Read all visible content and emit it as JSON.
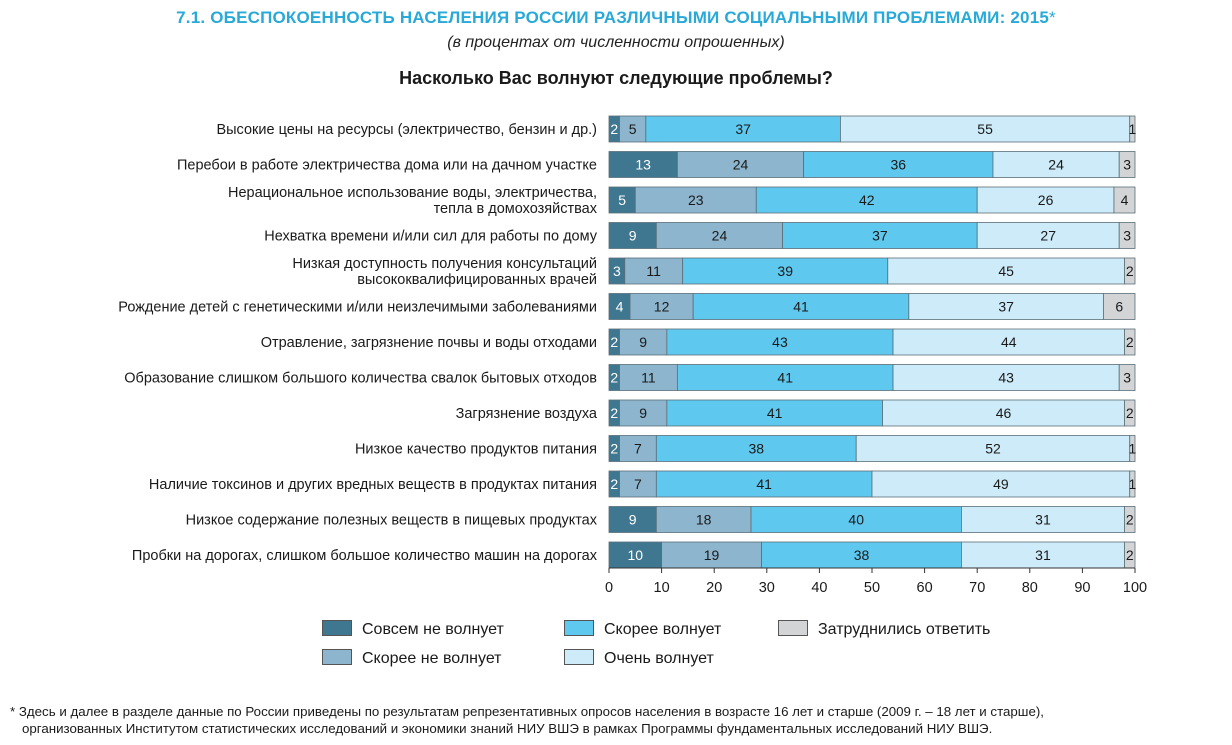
{
  "header": {
    "title": "7.1. ОБЕСПОКОЕННОСТЬ НАСЕЛЕНИЯ РОССИИ РАЗЛИЧНЫМИ СОЦИАЛЬНЫМИ ПРОБЛЕМАМИ: 2015",
    "title_mark": "*",
    "subtitle": "(в процентах от численности опрошенных)",
    "question": "Насколько Вас волнуют следующие проблемы?"
  },
  "chart_data": {
    "type": "bar",
    "orientation": "horizontal",
    "stacked": true,
    "xlim": [
      0,
      100
    ],
    "xticks": [
      "0",
      "10",
      "20",
      "30",
      "40",
      "50",
      "60",
      "70",
      "80",
      "90",
      "100"
    ],
    "categories": [
      [
        "Высокие цены на ресурсы (электричество, бензин и др.)"
      ],
      [
        "Перебои в работе электричества дома или на дачном участке"
      ],
      [
        "Нерациональное использование воды, электричества,",
        "тепла в домохозяйствах"
      ],
      [
        "Нехватка времени и/или сил для работы по дому"
      ],
      [
        "Низкая доступность получения консультаций",
        "высококвалифицированных врачей"
      ],
      [
        "Рождение детей с генетическими и/или неизлечимыми заболеваниями"
      ],
      [
        "Отравление, загрязнение почвы и воды отходами"
      ],
      [
        "Образование слишком большого количества свалок бытовых отходов"
      ],
      [
        "Загрязнение воздуха"
      ],
      [
        "Низкое качество продуктов питания"
      ],
      [
        "Наличие токсинов и других вредных веществ в продуктах питания"
      ],
      [
        "Низкое содержание полезных веществ в пищевых продуктах"
      ],
      [
        "Пробки на дорогах, слишком большое количество машин на дорогах"
      ]
    ],
    "series": [
      {
        "name": "Совсем не волнует",
        "color": "#3f7791",
        "label_color": "#ffffff",
        "values": [
          2,
          13,
          5,
          9,
          3,
          4,
          2,
          2,
          2,
          2,
          2,
          9,
          10
        ]
      },
      {
        "name": "Скорее не волнует",
        "color": "#8db5cd",
        "label_color": "#1a1a1a",
        "values": [
          5,
          24,
          23,
          24,
          11,
          12,
          9,
          11,
          9,
          7,
          7,
          18,
          19
        ]
      },
      {
        "name": "Скорее волнует",
        "color": "#5ec8ee",
        "label_color": "#1a1a1a",
        "values": [
          37,
          36,
          42,
          37,
          39,
          41,
          43,
          41,
          41,
          38,
          41,
          40,
          38
        ]
      },
      {
        "name": "Очень волнует",
        "color": "#cdebf8",
        "label_color": "#1a1a1a",
        "values": [
          55,
          24,
          26,
          27,
          45,
          37,
          44,
          43,
          46,
          52,
          49,
          31,
          31
        ]
      },
      {
        "name": "Затруднились ответить",
        "color": "#d2d4d5",
        "label_color": "#1a1a1a",
        "values": [
          1,
          3,
          4,
          3,
          2,
          6,
          2,
          3,
          2,
          1,
          1,
          2,
          2
        ]
      }
    ]
  },
  "legend": {
    "items": [
      {
        "label": "Совсем не волнует",
        "color": "#3f7791"
      },
      {
        "label": "Скорее волнует",
        "color": "#5ec8ee"
      },
      {
        "label": "Затруднились ответить",
        "color": "#d2d4d5"
      },
      {
        "label": "Скорее не волнует",
        "color": "#8db5cd"
      },
      {
        "label": "Очень волнует",
        "color": "#cdebf8"
      }
    ]
  },
  "footnote": {
    "line1": "* Здесь и далее в разделе данные по России приведены по результатам репрезентативных опросов населения в возрасте 16 лет и старше (2009 г. – 18 лет и старше),",
    "line2": "организованных Институтом статистических исследований и экономики знаний НИУ ВШЭ в рамках Программы фундаментальных исследований НИУ ВШЭ."
  }
}
